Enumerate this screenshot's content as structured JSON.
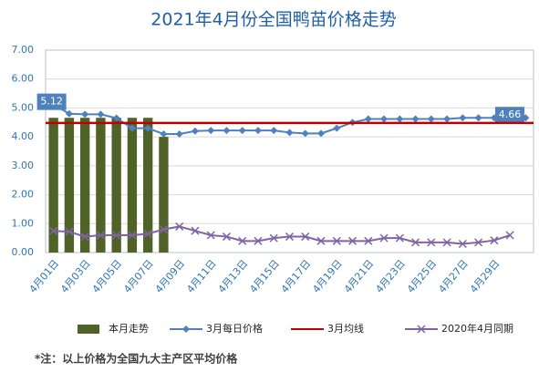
{
  "chart_data": {
    "type": "combo",
    "title": "2021年4月份全国鸭苗价格走势",
    "footnote": "*注：以上价格为全国九大主产区平均价格",
    "categories": [
      "4月01日",
      null,
      "4月03日",
      null,
      "4月05日",
      null,
      "4月07日",
      null,
      "4月09日",
      null,
      "4月11日",
      null,
      "4月13日",
      null,
      "4月15日",
      null,
      "4月17日",
      null,
      "4月19日",
      null,
      "4月21日",
      null,
      "4月23日",
      null,
      "4月25日",
      null,
      "4月27日",
      null,
      "4月29日",
      null,
      null
    ],
    "ylim": [
      0,
      7
    ],
    "yticks": [
      {
        "value": 0,
        "label": "0.00"
      },
      {
        "value": 1,
        "label": "1.00"
      },
      {
        "value": 2,
        "label": "2.00"
      },
      {
        "value": 3,
        "label": "3.00"
      },
      {
        "value": 4,
        "label": "4.00"
      },
      {
        "value": 5,
        "label": "5.00"
      },
      {
        "value": 6,
        "label": "6.00"
      },
      {
        "value": 7,
        "label": "7.00"
      }
    ],
    "grid": true,
    "legend": "bottom",
    "series": [
      {
        "name": "本月走势",
        "type": "bar",
        "color": "#4f6228",
        "values": [
          4.66,
          4.66,
          4.66,
          4.66,
          4.66,
          4.66,
          4.66,
          4.0,
          null,
          null,
          null,
          null,
          null,
          null,
          null,
          null,
          null,
          null,
          null,
          null,
          null,
          null,
          null,
          null,
          null,
          null,
          null,
          null,
          null,
          null,
          null
        ]
      },
      {
        "name": "3月每日价格",
        "type": "line",
        "marker": "diamond",
        "color": "#4f81bd",
        "values": [
          5.12,
          4.8,
          4.78,
          4.78,
          4.65,
          4.3,
          4.3,
          4.1,
          4.1,
          4.2,
          4.22,
          4.22,
          4.22,
          4.22,
          4.22,
          4.15,
          4.12,
          4.12,
          4.3,
          4.5,
          4.62,
          4.62,
          4.62,
          4.62,
          4.62,
          4.62,
          4.66,
          4.66,
          4.66,
          4.66,
          4.66
        ],
        "value_labels": [
          "5.12",
          null,
          null,
          null,
          null,
          null,
          null,
          null,
          null,
          null,
          null,
          null,
          null,
          null,
          null,
          null,
          null,
          null,
          null,
          null,
          null,
          null,
          null,
          null,
          null,
          null,
          null,
          null,
          null,
          null,
          "4.66"
        ]
      },
      {
        "name": "3月均线",
        "type": "hline",
        "color": "#c00000",
        "value": 4.48
      },
      {
        "name": "2020年4月同期",
        "type": "line",
        "marker": "x",
        "color": "#8064a2",
        "values": [
          0.75,
          0.72,
          0.55,
          0.6,
          0.6,
          0.6,
          0.65,
          0.8,
          0.9,
          0.75,
          0.6,
          0.55,
          0.4,
          0.4,
          0.5,
          0.55,
          0.55,
          0.4,
          0.4,
          0.4,
          0.4,
          0.5,
          0.5,
          0.35,
          0.35,
          0.35,
          0.3,
          0.35,
          0.42,
          0.6,
          null
        ]
      }
    ]
  }
}
